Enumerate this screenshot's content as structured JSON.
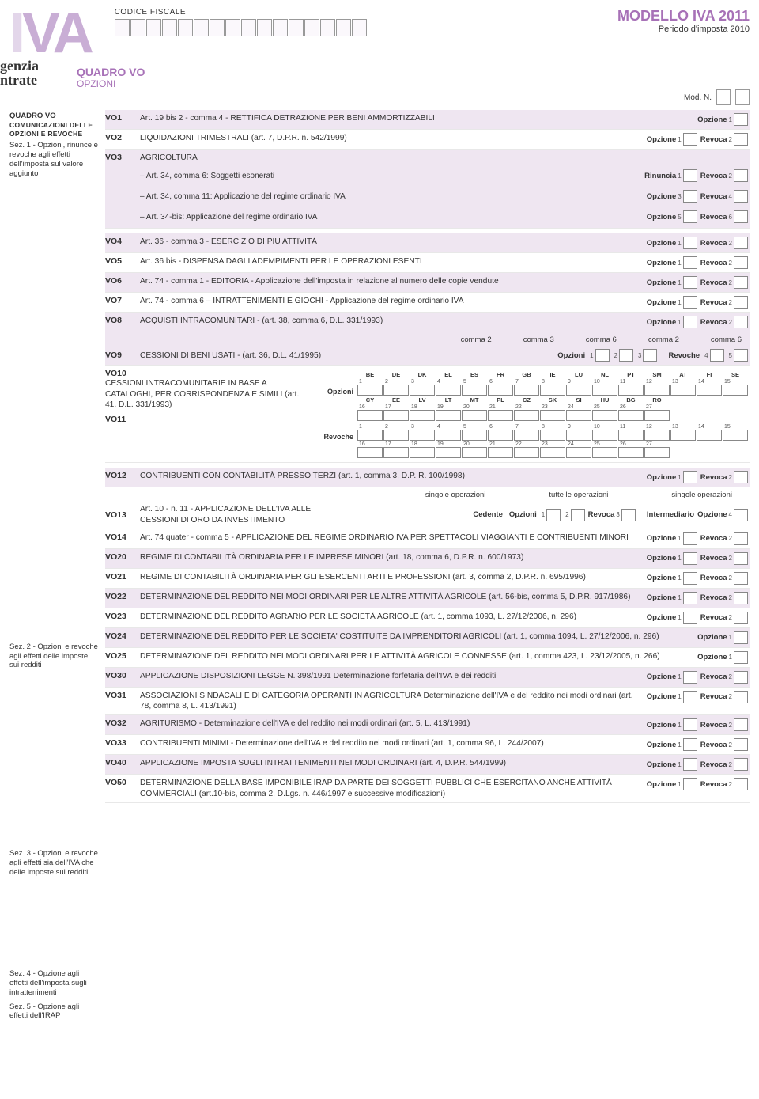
{
  "colors": {
    "accent": "#a771b7",
    "accent_light": "#c9aed5",
    "accent_pale": "#e3d6ea",
    "stripe": "#efe6f1",
    "border": "#888888",
    "text": "#333333"
  },
  "header": {
    "cf_label": "CODICE FISCALE",
    "cf_box_count": 16,
    "modello": "MODELLO IVA 2011",
    "periodo": "Periodo d'imposta 2010",
    "quadro": "QUADRO VO",
    "opzioni": "OPZIONI",
    "modn_label": "Mod. N.",
    "agenzia_top": "genzia",
    "agenzia_bottom": "ntrate"
  },
  "sidebar": {
    "s1_title": "QUADRO VO",
    "s1_sub": "COMUNICAZIONI DELLE OPZIONI E REVOCHE",
    "s1_body": "Sez. 1 - Opzioni, rinunce e revoche agli effetti dell'imposta sul valore aggiunto",
    "s2": "Sez. 2 - Opzioni e revoche agli effetti delle imposte sui redditi",
    "s3": "Sez. 3 - Opzioni e revoche agli effetti sia dell'IVA che delle imposte sui redditi",
    "s4": "Sez. 4 - Opzione agli effetti dell'imposta sugli intrattenimenti",
    "s5": "Sez. 5 - Opzione agli effetti dell'IRAP"
  },
  "labels": {
    "opzione": "Opzione",
    "revoca": "Revoca",
    "rinuncia": "Rinuncia",
    "opzioni": "Opzioni",
    "revoche": "Revoche",
    "cedente": "Cedente",
    "intermediario": "Intermediario",
    "singole_op": "singole operazioni",
    "tutte_op": "tutte le operazioni"
  },
  "rows": {
    "vo1": {
      "code": "VO1",
      "text": "Art. 19 bis 2 - comma 4 - RETTIFICA DETRAZIONE PER BENI AMMORTIZZABILI",
      "opts": [
        {
          "l": "Opzione",
          "n": "1"
        }
      ]
    },
    "vo2": {
      "code": "VO2",
      "text": "LIQUIDAZIONI TRIMESTRALI (art. 7, D.P.R. n. 542/1999)",
      "opts": [
        {
          "l": "Opzione",
          "n": "1"
        },
        {
          "l": "Revoca",
          "n": "2"
        }
      ]
    },
    "vo3": {
      "code": "VO3",
      "heading": "AGRICOLTURA",
      "sub": [
        {
          "text": "– Art. 34, comma 6: Soggetti esonerati",
          "opts": [
            {
              "l": "Rinuncia",
              "n": "1"
            },
            {
              "l": "Revoca",
              "n": "2"
            }
          ]
        },
        {
          "text": "– Art. 34, comma 11: Applicazione del regime ordinario IVA",
          "opts": [
            {
              "l": "Opzione",
              "n": "3"
            },
            {
              "l": "Revoca",
              "n": "4"
            }
          ]
        },
        {
          "text": "– Art. 34-bis: Applicazione del regime ordinario IVA",
          "opts": [
            {
              "l": "Opzione",
              "n": "5"
            },
            {
              "l": "Revoca",
              "n": "6"
            }
          ]
        }
      ]
    },
    "vo4": {
      "code": "VO4",
      "text": "Art. 36 - comma 3 - ESERCIZIO DI PIÙ ATTIVITÀ",
      "opts": [
        {
          "l": "Opzione",
          "n": "1"
        },
        {
          "l": "Revoca",
          "n": "2"
        }
      ]
    },
    "vo5": {
      "code": "VO5",
      "text": "Art. 36 bis - DISPENSA DAGLI ADEMPIMENTI PER LE OPERAZIONI ESENTI",
      "opts": [
        {
          "l": "Opzione",
          "n": "1"
        },
        {
          "l": "Revoca",
          "n": "2"
        }
      ]
    },
    "vo6": {
      "code": "VO6",
      "text": "Art. 74 - comma 1 - EDITORIA - Applicazione dell'imposta in relazione al numero delle copie vendute",
      "opts": [
        {
          "l": "Opzione",
          "n": "1"
        },
        {
          "l": "Revoca",
          "n": "2"
        }
      ]
    },
    "vo7": {
      "code": "VO7",
      "text": "Art. 74 - comma 6 – INTRATTENIMENTI E GIOCHI - Applicazione del regime ordinario IVA",
      "opts": [
        {
          "l": "Opzione",
          "n": "1"
        },
        {
          "l": "Revoca",
          "n": "2"
        }
      ]
    },
    "vo8": {
      "code": "VO8",
      "text": "ACQUISTI INTRACOMUNITARI - (art. 38, comma 6, D.L. 331/1993)",
      "opts": [
        {
          "l": "Opzione",
          "n": "1"
        },
        {
          "l": "Revoca",
          "n": "2"
        }
      ]
    },
    "vo9": {
      "code": "VO9",
      "text": "CESSIONI DI BENI USATI - (art. 36, D.L. 41/1995)",
      "top_headers": [
        "comma 2",
        "comma 3",
        "comma 6",
        "comma 2",
        "comma 6"
      ],
      "opz_nums": [
        "1",
        "2",
        "3"
      ],
      "rev_nums": [
        "4",
        "5"
      ]
    },
    "vo10": {
      "code": "VO10",
      "code2": "VO11",
      "text": "CESSIONI INTRACOMUNITARIE IN BASE A CATALOGHI, PER CORRISPONDENZA E SIMILI (art. 41, D.L. 331/1993)",
      "countries_r1": [
        "BE",
        "DE",
        "DK",
        "EL",
        "ES",
        "FR",
        "GB",
        "IE",
        "LU",
        "NL",
        "PT",
        "SM",
        "AT",
        "FI",
        "SE"
      ],
      "countries_r2": [
        "CY",
        "EE",
        "LV",
        "LT",
        "MT",
        "PL",
        "CZ",
        "SK",
        "SI",
        "HU",
        "BG",
        "RO"
      ],
      "nums_r1_start": 1,
      "nums_r2_start": 16
    },
    "vo12": {
      "code": "VO12",
      "text": "CONTRIBUENTI CON CONTABILITÀ PRESSO TERZI (art. 1, comma 3, D.P. R. 100/1998)",
      "opts": [
        {
          "l": "Opzione",
          "n": "1"
        },
        {
          "l": "Revoca",
          "n": "2"
        }
      ]
    },
    "vo13": {
      "code": "VO13",
      "text": "Art. 10 - n. 11 - APPLICAZIONE DELL'IVA ALLE CESSIONI DI ORO DA INVESTIMENTO"
    },
    "vo14": {
      "code": "VO14",
      "text": "Art. 74 quater - comma 5 - APPLICAZIONE DEL REGIME ORDINARIO IVA PER SPETTACOLI VIAGGIANTI E CONTRIBUENTI MINORI",
      "opts": [
        {
          "l": "Opzione",
          "n": "1"
        },
        {
          "l": "Revoca",
          "n": "2"
        }
      ]
    },
    "vo20": {
      "code": "VO20",
      "text": "REGIME DI CONTABILITÀ ORDINARIA PER LE IMPRESE MINORI (art. 18, comma 6, D.P.R. n. 600/1973)",
      "opts": [
        {
          "l": "Opzione",
          "n": "1"
        },
        {
          "l": "Revoca",
          "n": "2"
        }
      ]
    },
    "vo21": {
      "code": "VO21",
      "text": "REGIME DI CONTABILITÀ ORDINARIA PER GLI ESERCENTI ARTI E PROFESSIONI (art. 3, comma 2, D.P.R. n. 695/1996)",
      "opts": [
        {
          "l": "Opzione",
          "n": "1"
        },
        {
          "l": "Revoca",
          "n": "2"
        }
      ]
    },
    "vo22": {
      "code": "VO22",
      "text": "DETERMINAZIONE DEL REDDITO NEI MODI ORDINARI PER LE ALTRE ATTIVITÀ AGRICOLE (art. 56-bis, comma 5, D.P.R. 917/1986)",
      "opts": [
        {
          "l": "Opzione",
          "n": "1"
        },
        {
          "l": "Revoca",
          "n": "2"
        }
      ]
    },
    "vo23": {
      "code": "VO23",
      "text": "DETERMINAZIONE DEL REDDITO AGRARIO PER LE SOCIETÀ AGRICOLE (art. 1, comma 1093, L. 27/12/2006, n. 296)",
      "opts": [
        {
          "l": "Opzione",
          "n": "1"
        },
        {
          "l": "Revoca",
          "n": "2"
        }
      ]
    },
    "vo24": {
      "code": "VO24",
      "text": "DETERMINAZIONE DEL REDDITO PER LE SOCIETA' COSTITUITE DA IMPRENDITORI AGRICOLI (art. 1, comma 1094, L. 27/12/2006, n. 296)",
      "opts": [
        {
          "l": "Opzione",
          "n": "1"
        }
      ]
    },
    "vo25": {
      "code": "VO25",
      "text": "DETERMINAZIONE DEL REDDITO NEI MODI ORDINARI PER LE ATTIVITÀ AGRICOLE CONNESSE (art. 1, comma 423, L. 23/12/2005, n. 266)",
      "opts": [
        {
          "l": "Opzione",
          "n": "1"
        }
      ]
    },
    "vo30": {
      "code": "VO30",
      "text": "APPLICAZIONE DISPOSIZIONI LEGGE N. 398/1991 Determinazione forfetaria dell'IVA e dei redditi",
      "opts": [
        {
          "l": "Opzione",
          "n": "1"
        },
        {
          "l": "Revoca",
          "n": "2"
        }
      ]
    },
    "vo31": {
      "code": "VO31",
      "text": "ASSOCIAZIONI SINDACALI E DI CATEGORIA OPERANTI IN AGRICOLTURA Determinazione dell'IVA e del reddito nei modi ordinari (art. 78, comma 8, L. 413/1991)",
      "opts": [
        {
          "l": "Opzione",
          "n": "1"
        },
        {
          "l": "Revoca",
          "n": "2"
        }
      ]
    },
    "vo32": {
      "code": "VO32",
      "text": "AGRITURISMO - Determinazione dell'IVA e del reddito nei modi ordinari (art. 5, L. 413/1991)",
      "opts": [
        {
          "l": "Opzione",
          "n": "1"
        },
        {
          "l": "Revoca",
          "n": "2"
        }
      ]
    },
    "vo33": {
      "code": "VO33",
      "text": "CONTRIBUENTI MINIMI - Determinazione dell'IVA e del reddito nei modi ordinari (art. 1, comma 96, L. 244/2007)",
      "opts": [
        {
          "l": "Opzione",
          "n": "1"
        },
        {
          "l": "Revoca",
          "n": "2"
        }
      ]
    },
    "vo40": {
      "code": "VO40",
      "text": "APPLICAZIONE IMPOSTA SUGLI INTRATTENIMENTI NEI MODI ORDINARI (art. 4, D.P.R. 544/1999)",
      "opts": [
        {
          "l": "Opzione",
          "n": "1"
        },
        {
          "l": "Revoca",
          "n": "2"
        }
      ]
    },
    "vo50": {
      "code": "VO50",
      "text": "DETERMINAZIONE DELLA BASE IMPONIBILE IRAP DA PARTE DEI SOGGETTI PUBBLICI CHE ESERCITANO ANCHE ATTIVITÀ COMMERCIALI (art.10-bis, comma 2, D.Lgs. n. 446/1997 e successive modificazioni)",
      "opts": [
        {
          "l": "Opzione",
          "n": "1"
        },
        {
          "l": "Revoca",
          "n": "2"
        }
      ]
    }
  }
}
